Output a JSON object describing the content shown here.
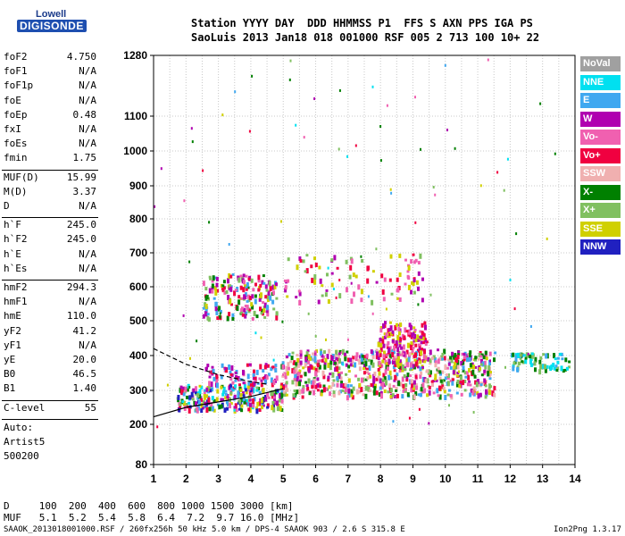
{
  "logo": {
    "line1": "Lowell",
    "line2": "DIGISONDE"
  },
  "header": {
    "row1": "Station YYYY DAY  DDD HHMMSS P1  FFS S AXN PPS IGA PS",
    "row2": "SaoLuis 2013 Jan18 018 001000 RSF 005 2 713 100 10+ 22"
  },
  "params_group1": [
    {
      "key": "foF2",
      "value": "4.750"
    },
    {
      "key": "foF1",
      "value": "N/A"
    },
    {
      "key": "foF1p",
      "value": "N/A"
    },
    {
      "key": "foE",
      "value": "N/A"
    },
    {
      "key": "foEp",
      "value": "0.48"
    },
    {
      "key": "fxI",
      "value": "N/A"
    },
    {
      "key": "foEs",
      "value": "N/A"
    },
    {
      "key": "fmin",
      "value": "1.75"
    }
  ],
  "params_group2": [
    {
      "key": "MUF(D)",
      "value": "15.99"
    },
    {
      "key": "M(D)",
      "value": "3.37"
    },
    {
      "key": "D",
      "value": "N/A"
    }
  ],
  "params_group3": [
    {
      "key": "h`F",
      "value": "245.0"
    },
    {
      "key": "h`F2",
      "value": "245.0"
    },
    {
      "key": "h`E",
      "value": "N/A"
    },
    {
      "key": "h`Es",
      "value": "N/A"
    }
  ],
  "params_group4": [
    {
      "key": "hmF2",
      "value": "294.3"
    },
    {
      "key": "hmF1",
      "value": "N/A"
    },
    {
      "key": "hmE",
      "value": "110.0"
    },
    {
      "key": "yF2",
      "value": "41.2"
    },
    {
      "key": "yF1",
      "value": "N/A"
    },
    {
      "key": "yE",
      "value": "20.0"
    },
    {
      "key": "B0",
      "value": "46.5"
    },
    {
      "key": "B1",
      "value": "1.40"
    }
  ],
  "clevel": {
    "key": "C-level",
    "value": "55"
  },
  "auto": {
    "line1": "Auto:",
    "line2": "Artist5",
    "line3": "500200"
  },
  "footer": {
    "d_row": "D     100  200  400  600  800 1000 1500 3000 [km]",
    "muf_row": "MUF   5.1  5.2  5.4  5.8  6.4  7.2  9.7 16.0 [MHz]",
    "file_line": "SAAOK_2013018001000.RSF / 260fx256h 50 kHz 5.0 km / DPS-4 SAAOK 903 / 2.6 S 315.8 E",
    "version": "Ion2Png 1.3.17"
  },
  "legend": [
    {
      "label": "NoVal",
      "color": "#a0a0a0"
    },
    {
      "label": "NNE",
      "color": "#00e0f0"
    },
    {
      "label": "E",
      "color": "#40a8f0"
    },
    {
      "label": "W",
      "color": "#b000b0"
    },
    {
      "label": "Vo-",
      "color": "#f060b0"
    },
    {
      "label": "Vo+",
      "color": "#f00040"
    },
    {
      "label": "SSW",
      "color": "#f0b0b0"
    },
    {
      "label": "X-",
      "color": "#008000"
    },
    {
      "label": "X+",
      "color": "#80c060"
    },
    {
      "label": "SSE",
      "color": "#d0d000"
    },
    {
      "label": "NNW",
      "color": "#2020c0"
    }
  ],
  "chart_data": {
    "type": "scatter",
    "x_axis": {
      "range": [
        1,
        14
      ],
      "ticks": [
        "1",
        "2",
        "3",
        "4",
        "5",
        "6",
        "7",
        "8",
        "9",
        "10",
        "11",
        "12",
        "13",
        "14"
      ],
      "unit": "MHz"
    },
    "y_axis": {
      "range": [
        80,
        1280
      ],
      "ticks": [
        "80",
        "200",
        "300",
        "400",
        "500",
        "600",
        "700",
        "800",
        "900",
        "1000",
        "1100",
        "1280"
      ],
      "unit": "km",
      "scale": "nonlinear"
    },
    "grid": true,
    "clusters": [
      {
        "name": "F-trace low",
        "x_range": [
          1.7,
          5.0
        ],
        "y_range": [
          245,
          320
        ],
        "colors": [
          "#b000b0",
          "#f00040",
          "#f060b0",
          "#008000",
          "#80c060",
          "#d0d000",
          "#40a8f0",
          "#00e0f0",
          "#2020c0"
        ],
        "density": 260
      },
      {
        "name": "F-trace mid",
        "x_range": [
          2.5,
          4.8
        ],
        "y_range": [
          320,
          380
        ],
        "colors": [
          "#b000b0",
          "#f060b0",
          "#f00040",
          "#40a8f0"
        ],
        "density": 90
      },
      {
        "name": "F2 main",
        "x_range": [
          4.9,
          11.5
        ],
        "y_range": [
          285,
          420
        ],
        "colors": [
          "#b000b0",
          "#f00040",
          "#f060b0",
          "#d0d000",
          "#80c060",
          "#008000",
          "#40a8f0",
          "#f0b0b0"
        ],
        "density": 700
      },
      {
        "name": "F2 upper",
        "x_range": [
          7.9,
          9.4
        ],
        "y_range": [
          380,
          500
        ],
        "colors": [
          "#b000b0",
          "#f00040",
          "#f060b0",
          "#d0d000"
        ],
        "density": 160
      },
      {
        "name": "2hop",
        "x_range": [
          2.5,
          4.8
        ],
        "y_range": [
          510,
          640
        ],
        "colors": [
          "#b000b0",
          "#f060b0",
          "#f00040",
          "#008000",
          "#40a8f0",
          "#d0d000",
          "#80c060"
        ],
        "density": 180
      },
      {
        "name": "2hop mid",
        "x_range": [
          5.0,
          9.3
        ],
        "y_range": [
          560,
          700
        ],
        "colors": [
          "#b000b0",
          "#f060b0",
          "#f00040",
          "#d0d000",
          "#80c060"
        ],
        "density": 100
      },
      {
        "name": "NNE spread",
        "x_range": [
          12.0,
          13.8
        ],
        "y_range": [
          360,
          410
        ],
        "colors": [
          "#00e0f0",
          "#40a8f0",
          "#80c060",
          "#008000"
        ],
        "density": 80
      },
      {
        "name": "noise",
        "x_range": [
          1.0,
          13.5
        ],
        "y_range": [
          180,
          1280
        ],
        "colors": [
          "#b000b0",
          "#00e0f0",
          "#008000",
          "#40a8f0",
          "#f00040",
          "#d0d000",
          "#f060b0",
          "#80c060"
        ],
        "density": 90
      }
    ],
    "lines": [
      {
        "name": "solid profile",
        "style": "solid",
        "points": [
          [
            1.0,
            222
          ],
          [
            2.0,
            250
          ],
          [
            3.0,
            266
          ],
          [
            4.0,
            282
          ],
          [
            5.0,
            305
          ]
        ]
      },
      {
        "name": "dashed profile",
        "style": "dashed",
        "points": [
          [
            1.0,
            420
          ],
          [
            2.0,
            375
          ],
          [
            3.0,
            345
          ],
          [
            4.0,
            325
          ],
          [
            4.5,
            318
          ]
        ]
      }
    ]
  }
}
